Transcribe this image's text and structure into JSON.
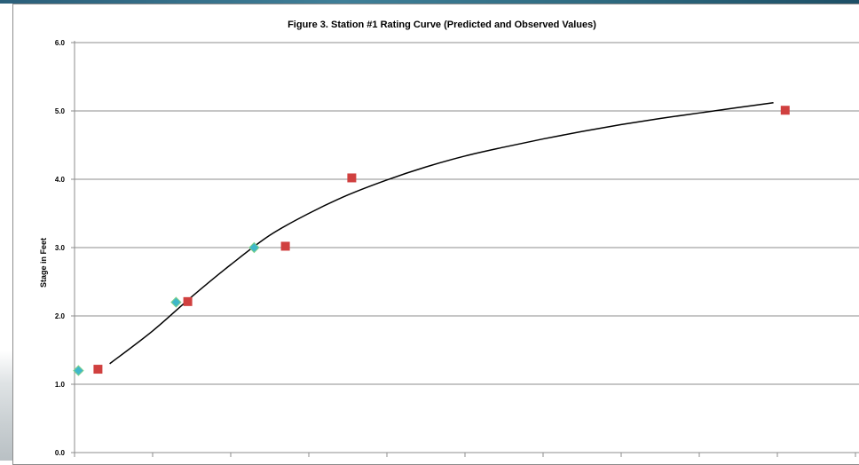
{
  "chart_data": {
    "type": "scatter",
    "title": "Figure 3. Station #1 Rating Curve (Predicted and Observed Values)",
    "xlabel": "",
    "ylabel": "Stage in Feet",
    "ylim": [
      0,
      6
    ],
    "xlim": [
      0,
      10
    ],
    "y_ticks": [
      "0.0",
      "1.0",
      "2.0",
      "3.0",
      "4.0",
      "5.0",
      "6.0"
    ],
    "grid": true,
    "legend": "none",
    "series": [
      {
        "type": "scatter",
        "marker": "diamond",
        "color": "#3fb8c9",
        "x": [
          0.05,
          1.3,
          2.3
        ],
        "y": [
          1.2,
          2.2,
          3.0
        ]
      },
      {
        "type": "scatter",
        "marker": "square",
        "color": "#d0403f",
        "x": [
          0.3,
          1.45,
          2.7,
          3.55,
          9.1
        ],
        "y": [
          1.22,
          2.21,
          3.02,
          4.02,
          5.01
        ]
      },
      {
        "type": "line",
        "color": "#000000",
        "x": [
          0.45,
          1.0,
          1.5,
          2.0,
          2.5,
          3.0,
          3.5,
          4.0,
          4.5,
          5.0,
          5.5,
          6.0,
          6.5,
          7.0,
          7.5,
          8.0,
          8.5,
          8.95
        ],
        "y": [
          1.3,
          1.78,
          2.28,
          2.75,
          3.18,
          3.5,
          3.77,
          3.99,
          4.18,
          4.34,
          4.47,
          4.59,
          4.7,
          4.8,
          4.89,
          4.97,
          5.05,
          5.12
        ]
      }
    ]
  }
}
